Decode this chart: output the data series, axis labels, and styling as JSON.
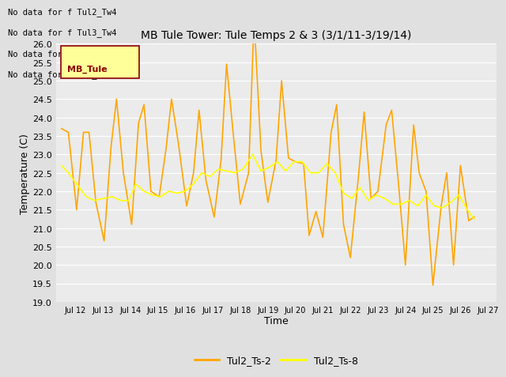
{
  "title": "MB Tule Tower: Tule Temps 2 & 3 (3/1/11-3/19/14)",
  "xlabel": "Time",
  "ylabel": "Temperature (C)",
  "ylim": [
    19.0,
    26.0
  ],
  "yticks": [
    19.0,
    19.5,
    20.0,
    20.5,
    21.0,
    21.5,
    22.0,
    22.5,
    23.0,
    23.5,
    24.0,
    24.5,
    25.0,
    25.5,
    26.0
  ],
  "xtick_labels": [
    "Jul 12",
    "Jul 13",
    "Jul 14",
    "Jul 15",
    "Jul 16",
    "Jul 17",
    "Jul 18",
    "Jul 19",
    "Jul 20",
    "Jul 21",
    "Jul 22",
    "Jul 23",
    "Jul 24",
    "Jul 25",
    "Jul 26",
    "Jul 27"
  ],
  "legend_labels": [
    "Tul2_Ts-2",
    "Tul2_Ts-8"
  ],
  "color_ts2": "#FFA500",
  "color_ts8": "#FFFF00",
  "fig_bg": "#E0E0E0",
  "plot_bg": "#EBEBEB",
  "no_data_text": [
    "No data for f Tul2_Tw4",
    "No data for f Tul3_Tw4",
    "No data for f Tul3_Ts2",
    "No data for f LMB_Tule"
  ],
  "ts2_x": [
    11.5,
    11.75,
    12.05,
    12.3,
    12.5,
    12.75,
    13.05,
    13.3,
    13.5,
    13.75,
    14.05,
    14.3,
    14.5,
    14.75,
    15.05,
    15.3,
    15.5,
    15.75,
    16.05,
    16.3,
    16.5,
    16.75,
    17.05,
    17.3,
    17.5,
    17.75,
    18.0,
    18.3,
    18.5,
    18.75,
    19.0,
    19.3,
    19.5,
    19.75,
    20.0,
    20.3,
    20.5,
    20.75,
    21.0,
    21.3,
    21.5,
    21.75,
    22.0,
    22.3,
    22.5,
    22.75,
    23.0,
    23.3,
    23.5,
    23.75,
    24.0,
    24.3,
    24.5,
    24.75,
    25.0,
    25.3,
    25.5,
    25.75,
    26.0,
    26.3,
    26.5
  ],
  "ts2_y": [
    23.7,
    23.6,
    21.5,
    23.6,
    23.6,
    21.7,
    20.65,
    23.2,
    24.5,
    22.5,
    21.1,
    23.85,
    24.35,
    22.0,
    21.85,
    23.15,
    24.5,
    23.3,
    21.6,
    22.5,
    24.2,
    22.3,
    21.3,
    22.85,
    25.45,
    23.5,
    21.65,
    22.5,
    26.7,
    23.1,
    21.7,
    22.85,
    25.0,
    22.9,
    22.8,
    22.75,
    20.8,
    21.45,
    20.75,
    23.6,
    24.35,
    21.1,
    20.2,
    22.45,
    24.15,
    21.8,
    22.0,
    23.8,
    24.2,
    22.2,
    20.0,
    23.8,
    22.5,
    22.0,
    19.45,
    21.6,
    22.5,
    20.0,
    22.7,
    21.2,
    21.3
  ],
  "ts8_x": [
    11.5,
    11.75,
    12.05,
    12.4,
    12.7,
    13.0,
    13.35,
    13.65,
    13.95,
    14.2,
    14.5,
    14.8,
    15.1,
    15.4,
    15.7,
    16.0,
    16.3,
    16.6,
    16.9,
    17.2,
    17.5,
    17.8,
    18.1,
    18.45,
    18.75,
    19.05,
    19.35,
    19.65,
    19.95,
    20.25,
    20.55,
    20.85,
    21.15,
    21.45,
    21.75,
    22.05,
    22.35,
    22.65,
    22.95,
    23.25,
    23.55,
    23.85,
    24.15,
    24.45,
    24.75,
    25.05,
    25.35,
    25.65,
    25.95,
    26.25,
    26.5
  ],
  "ts8_y": [
    22.7,
    22.5,
    22.2,
    21.85,
    21.75,
    21.8,
    21.85,
    21.75,
    21.75,
    22.2,
    22.0,
    21.9,
    21.85,
    22.0,
    21.95,
    22.0,
    22.2,
    22.5,
    22.4,
    22.6,
    22.55,
    22.5,
    22.6,
    23.0,
    22.55,
    22.65,
    22.8,
    22.55,
    22.8,
    22.8,
    22.5,
    22.5,
    22.75,
    22.5,
    21.95,
    21.8,
    22.1,
    21.75,
    21.9,
    21.8,
    21.65,
    21.65,
    21.75,
    21.6,
    21.9,
    21.6,
    21.55,
    21.7,
    21.9,
    21.5,
    21.25
  ]
}
